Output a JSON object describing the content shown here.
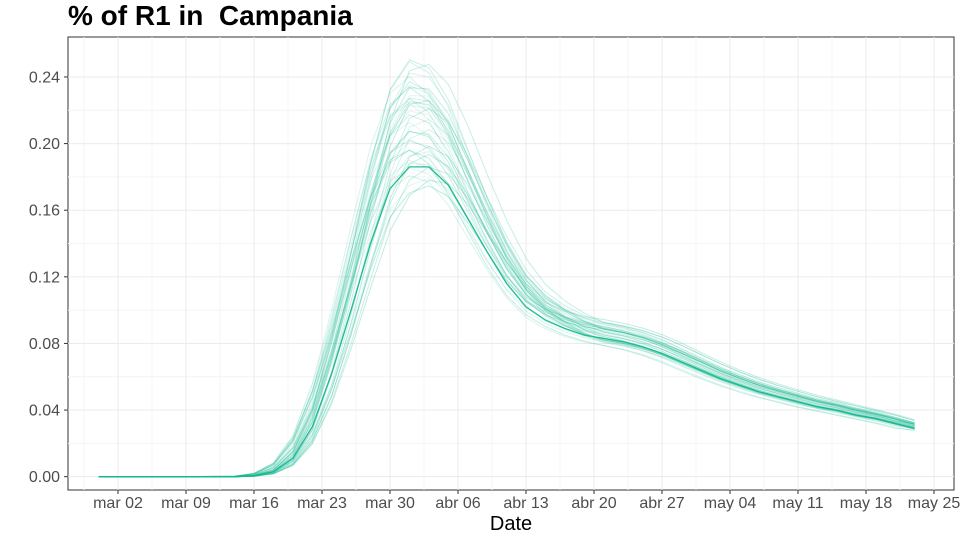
{
  "chart_data": {
    "type": "line",
    "title": "% of R1 in  Campania",
    "xlabel": "Date",
    "ylabel": "",
    "x_ticks": [
      "mar 02",
      "mar 09",
      "mar 16",
      "mar 23",
      "mar 30",
      "abr 06",
      "abr 13",
      "abr 20",
      "abr 27",
      "may 04",
      "may 11",
      "may 18",
      "may 25"
    ],
    "y_ticks": [
      "0.00",
      "0.04",
      "0.08",
      "0.12",
      "0.16",
      "0.20",
      "0.24"
    ],
    "xlim_days_label": [
      "mar 02",
      "may 25"
    ],
    "ylim": [
      -0.008,
      0.264
    ],
    "grid": true,
    "line_color": "#14b890",
    "series_count": 40,
    "x": [
      "feb 29",
      "mar 07",
      "mar 14",
      "mar 16",
      "mar 18",
      "mar 20",
      "mar 22",
      "mar 24",
      "mar 26",
      "mar 28",
      "mar 30",
      "abr 01",
      "abr 03",
      "abr 05",
      "abr 07",
      "abr 09",
      "abr 11",
      "abr 13",
      "abr 15",
      "abr 17",
      "abr 19",
      "abr 21",
      "abr 23",
      "abr 25",
      "abr 27",
      "abr 29",
      "may 01",
      "may 03",
      "may 05",
      "may 07",
      "may 09",
      "may 11",
      "may 13",
      "may 15",
      "may 17",
      "may 19",
      "may 21",
      "may 23"
    ],
    "series": [
      {
        "highlight": true,
        "values": [
          0.0,
          0.0,
          0.0,
          0.0005,
          0.003,
          0.011,
          0.03,
          0.062,
          0.1,
          0.14,
          0.173,
          0.186,
          0.186,
          0.175,
          0.155,
          0.135,
          0.116,
          0.102,
          0.094,
          0.089,
          0.085,
          0.083,
          0.081,
          0.078,
          0.074,
          0.069,
          0.064,
          0.059,
          0.055,
          0.051,
          0.048,
          0.045,
          0.042,
          0.04,
          0.037,
          0.035,
          0.032,
          0.029
        ]
      }
    ]
  }
}
